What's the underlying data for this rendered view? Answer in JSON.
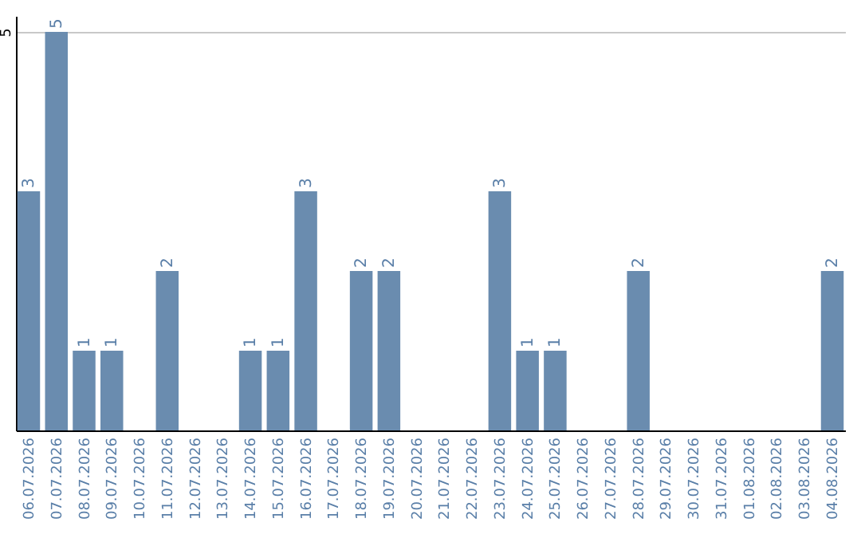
{
  "chart_data": {
    "type": "bar",
    "categories": [
      "06.07.2026",
      "07.07.2026",
      "08.07.2026",
      "09.07.2026",
      "10.07.2026",
      "11.07.2026",
      "12.07.2026",
      "13.07.2026",
      "14.07.2026",
      "15.07.2026",
      "16.07.2026",
      "17.07.2026",
      "18.07.2026",
      "19.07.2026",
      "20.07.2026",
      "21.07.2026",
      "22.07.2026",
      "23.07.2026",
      "24.07.2026",
      "25.07.2026",
      "26.07.2026",
      "27.07.2026",
      "28.07.2026",
      "29.07.2026",
      "30.07.2026",
      "31.07.2026",
      "01.08.2026",
      "02.08.2026",
      "03.08.2026",
      "04.08.2026"
    ],
    "values": [
      3,
      5,
      1,
      1,
      0,
      2,
      0,
      0,
      1,
      1,
      3,
      0,
      2,
      2,
      0,
      0,
      0,
      3,
      1,
      1,
      0,
      0,
      2,
      0,
      0,
      0,
      0,
      0,
      0,
      2
    ],
    "value_labels": [
      "3",
      "5",
      "1",
      "1",
      null,
      "2",
      null,
      null,
      "1",
      "1",
      "3",
      null,
      "2",
      "2",
      null,
      null,
      null,
      "3",
      "1",
      "1",
      null,
      null,
      "2",
      null,
      null,
      null,
      null,
      null,
      null,
      "2"
    ],
    "color": "#6a8caf",
    "ylim": [
      0,
      5.2
    ],
    "yticks": [
      5
    ],
    "grid": "y"
  }
}
